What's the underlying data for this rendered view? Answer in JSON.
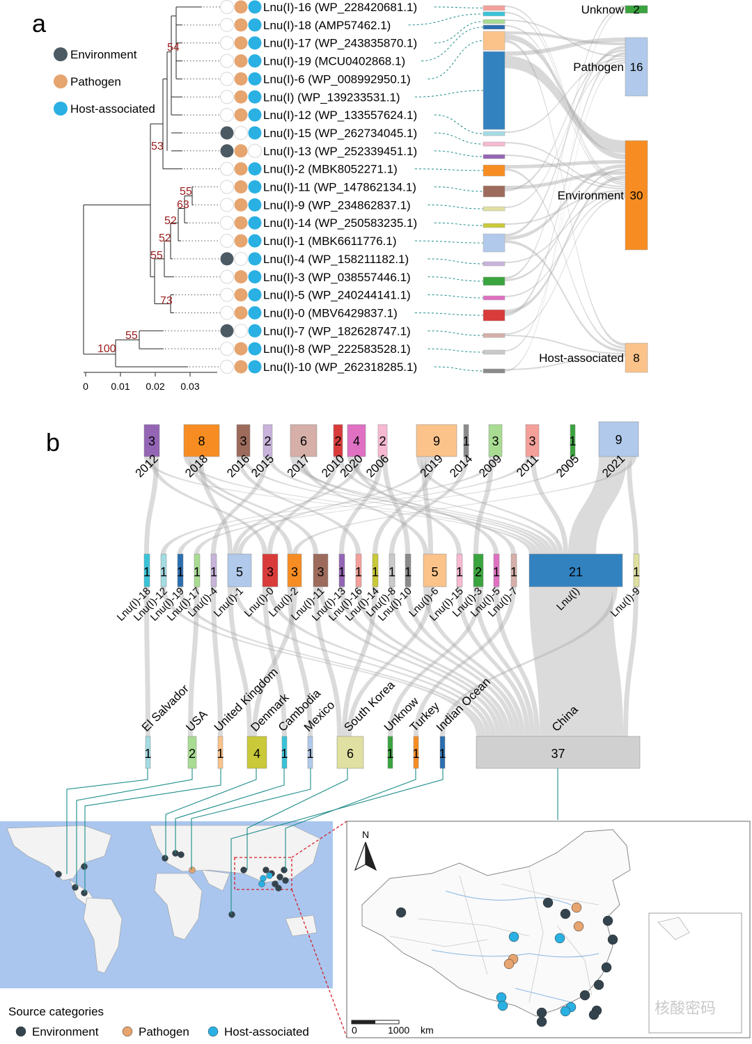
{
  "panel_a": {
    "label": "a",
    "legend": [
      {
        "name": "Environment",
        "color": "#4c5a63"
      },
      {
        "name": "Pathogen",
        "color": "#e6a46f"
      },
      {
        "name": "Host-associated",
        "color": "#2ab0e2"
      }
    ],
    "scale_ticks": [
      "0",
      "0.01",
      "0.02",
      "0.03"
    ],
    "bootstrap": [
      "54",
      "53",
      "55",
      "63",
      "52",
      "52",
      "55",
      "73",
      "55",
      "100"
    ],
    "leaves": [
      {
        "label": "Lnu(I)-16 (WP_228420681.1)",
        "env": false,
        "path": true,
        "host": true,
        "color": "#f4a09a"
      },
      {
        "label": "Lnu(I)-18 (AMP57462.1)",
        "env": false,
        "path": true,
        "host": true,
        "color": "#39c3d8"
      },
      {
        "label": "Lnu(I)-17 (WP_243835870.1)",
        "env": false,
        "path": true,
        "host": true,
        "color": "#a9dc93"
      },
      {
        "label": "Lnu(I)-19 (MCU0402868.1)",
        "env": false,
        "path": true,
        "host": true,
        "color": "#2c6fb0"
      },
      {
        "label": "Lnu(I)-6 (WP_008992950.1)",
        "env": false,
        "path": true,
        "host": true,
        "color": "#fbc38a"
      },
      {
        "label": "Lnu(I) (WP_139233531.1)",
        "env": false,
        "path": true,
        "host": true,
        "color": "#3282c0"
      },
      {
        "label": "Lnu(I)-12 (WP_133557624.1)",
        "env": false,
        "path": true,
        "host": true,
        "color": "#a4dbe3"
      },
      {
        "label": "Lnu(I)-15 (WP_262734045.1)",
        "env": true,
        "path": false,
        "host": true,
        "color": "#f7b9d2"
      },
      {
        "label": "Lnu(I)-13 (WP_252339451.1)",
        "env": true,
        "path": true,
        "host": false,
        "color": "#9465b5"
      },
      {
        "label": "Lnu(I)-2 (MBK8052271.1)",
        "env": false,
        "path": true,
        "host": true,
        "color": "#f78d22"
      },
      {
        "label": "Lnu(I)-11 (WP_147862134.1)",
        "env": false,
        "path": true,
        "host": true,
        "color": "#9c6b5c"
      },
      {
        "label": "Lnu(I)-9 (WP_234862837.1)",
        "env": false,
        "path": true,
        "host": true,
        "color": "#dfe0a1"
      },
      {
        "label": "Lnu(I)-14 (WP_250583235.1)",
        "env": false,
        "path": true,
        "host": true,
        "color": "#c9c93a"
      },
      {
        "label": "Lnu(I)-1 (MBK6611776.1)",
        "env": false,
        "path": true,
        "host": true,
        "color": "#b1c9ea"
      },
      {
        "label": "Lnu(I)-4 (WP_158211182.1)",
        "env": true,
        "path": false,
        "host": true,
        "color": "#c8b3db"
      },
      {
        "label": "Lnu(I)-3 (WP_038557446.1)",
        "env": false,
        "path": true,
        "host": true,
        "color": "#3aa43f"
      },
      {
        "label": "Lnu(I)-5 (WP_240244141.1)",
        "env": false,
        "path": true,
        "host": true,
        "color": "#df70c2"
      },
      {
        "label": "Lnu(I)-0 (MBV6429837.1)",
        "env": false,
        "path": true,
        "host": true,
        "color": "#d93b3b"
      },
      {
        "label": "Lnu(I)-7 (WP_182628747.1)",
        "env": true,
        "path": false,
        "host": true,
        "color": "#d5afa8"
      },
      {
        "label": "Lnu(I)-8 (WP_222583528.1)",
        "env": false,
        "path": true,
        "host": true,
        "color": "#c9c9c9"
      },
      {
        "label": "Lnu(I)-10 (WP_262318285.1)",
        "env": false,
        "path": true,
        "host": true,
        "color": "#8a8a8a"
      }
    ],
    "categories": [
      {
        "name": "Unknow",
        "count": "2",
        "color": "#3aa43f"
      },
      {
        "name": "Pathogen",
        "count": "16",
        "color": "#b1c9ea"
      },
      {
        "name": "Environment",
        "count": "30",
        "color": "#f78d22"
      },
      {
        "name": "Host-associated",
        "count": "8",
        "color": "#fbc38a"
      }
    ]
  },
  "panel_b": {
    "label": "b",
    "years": [
      {
        "label": "2012",
        "count": "3",
        "color": "#9465b5"
      },
      {
        "label": "2018",
        "count": "8",
        "color": "#f78d22"
      },
      {
        "label": "2016",
        "count": "3",
        "color": "#9c6b5c"
      },
      {
        "label": "2015",
        "count": "2",
        "color": "#c8b3db"
      },
      {
        "label": "2017",
        "count": "6",
        "color": "#d5afa8"
      },
      {
        "label": "2010",
        "count": "2",
        "color": "#d93b3b"
      },
      {
        "label": "2020",
        "count": "4",
        "color": "#df70c2"
      },
      {
        "label": "2006",
        "count": "2",
        "color": "#f7b9d2"
      },
      {
        "label": "2019",
        "count": "9",
        "color": "#fbc38a"
      },
      {
        "label": "2014",
        "count": "1",
        "color": "#8a8a8a"
      },
      {
        "label": "2009",
        "count": "3",
        "color": "#a9dc93"
      },
      {
        "label": "2011",
        "count": "3",
        "color": "#f4a09a"
      },
      {
        "label": "2005",
        "count": "1",
        "color": "#3aa43f"
      },
      {
        "label": "2021",
        "count": "9",
        "color": "#b1c9ea"
      }
    ],
    "variants": [
      {
        "label": "Lnu(I)-18",
        "count": "1",
        "color": "#39c3d8"
      },
      {
        "label": "Lnu(I)-12",
        "count": "1",
        "color": "#a4dbe3"
      },
      {
        "label": "Lnu(I)-19",
        "count": "1",
        "color": "#2c6fb0"
      },
      {
        "label": "Lnu(I)-17",
        "count": "1",
        "color": "#a9dc93"
      },
      {
        "label": "Lnu(I)-4",
        "count": "1",
        "color": "#c8b3db"
      },
      {
        "label": "Lnu(I)-1",
        "count": "5",
        "color": "#b1c9ea"
      },
      {
        "label": "Lnu(I)-0",
        "count": "3",
        "color": "#d93b3b"
      },
      {
        "label": "Lnu(I)-2",
        "count": "3",
        "color": "#f78d22"
      },
      {
        "label": "Lnu(I)-11",
        "count": "3",
        "color": "#9c6b5c"
      },
      {
        "label": "Lnu(I)-13",
        "count": "1",
        "color": "#9465b5"
      },
      {
        "label": "Lnu(I)-16",
        "count": "1",
        "color": "#f4a09a"
      },
      {
        "label": "Lnu(I)-14",
        "count": "1",
        "color": "#c9c93a"
      },
      {
        "label": "Lnu(I)-8",
        "count": "1",
        "color": "#c9c9c9"
      },
      {
        "label": "Lnu(I)-10",
        "count": "1",
        "color": "#8a8a8a"
      },
      {
        "label": "Lnu(I)-6",
        "count": "5",
        "color": "#fbc38a"
      },
      {
        "label": "Lnu(I)-15",
        "count": "1",
        "color": "#f7b9d2"
      },
      {
        "label": "Lnu(I)-3",
        "count": "2",
        "color": "#3aa43f"
      },
      {
        "label": "Lnu(I)-5",
        "count": "1",
        "color": "#df70c2"
      },
      {
        "label": "Lnu(I)-7",
        "count": "1",
        "color": "#d5afa8"
      },
      {
        "label": "Lnu(I)",
        "count": "21",
        "color": "#3282c0"
      },
      {
        "label": "Lnu(I)-9",
        "count": "1",
        "color": "#dfe0a1"
      }
    ],
    "countries": [
      {
        "label": "El Salvador",
        "count": "1",
        "color": "#a4dbe3"
      },
      {
        "label": "USA",
        "count": "2",
        "color": "#a9dc93"
      },
      {
        "label": "United Kingdom",
        "count": "1",
        "color": "#fbc38a"
      },
      {
        "label": "Denmark",
        "count": "4",
        "color": "#c9c93a"
      },
      {
        "label": "Cambodia",
        "count": "1",
        "color": "#39c3d8"
      },
      {
        "label": "Mexico",
        "count": "1",
        "color": "#b1c9ea"
      },
      {
        "label": "South Korea",
        "count": "6",
        "color": "#dfe0a1"
      },
      {
        "label": "Unknow",
        "count": "1",
        "color": "#3aa43f"
      },
      {
        "label": "Turkey",
        "count": "1",
        "color": "#f78d22"
      },
      {
        "label": "Indian Ocean",
        "count": "1",
        "color": "#2c6fb0"
      },
      {
        "label": "China",
        "count": "37",
        "color": "#d0d0d0"
      }
    ],
    "map_legend": {
      "title": "Source categories",
      "items": [
        {
          "name": "Environment",
          "color": "#34444f"
        },
        {
          "name": "Pathogen",
          "color": "#e6a46f"
        },
        {
          "name": "Host-associated",
          "color": "#2ab0e2"
        }
      ]
    },
    "scalebar": {
      "start": "0",
      "end": "1000",
      "unit": "km"
    },
    "north": "N",
    "watermark": "核酸密码"
  }
}
